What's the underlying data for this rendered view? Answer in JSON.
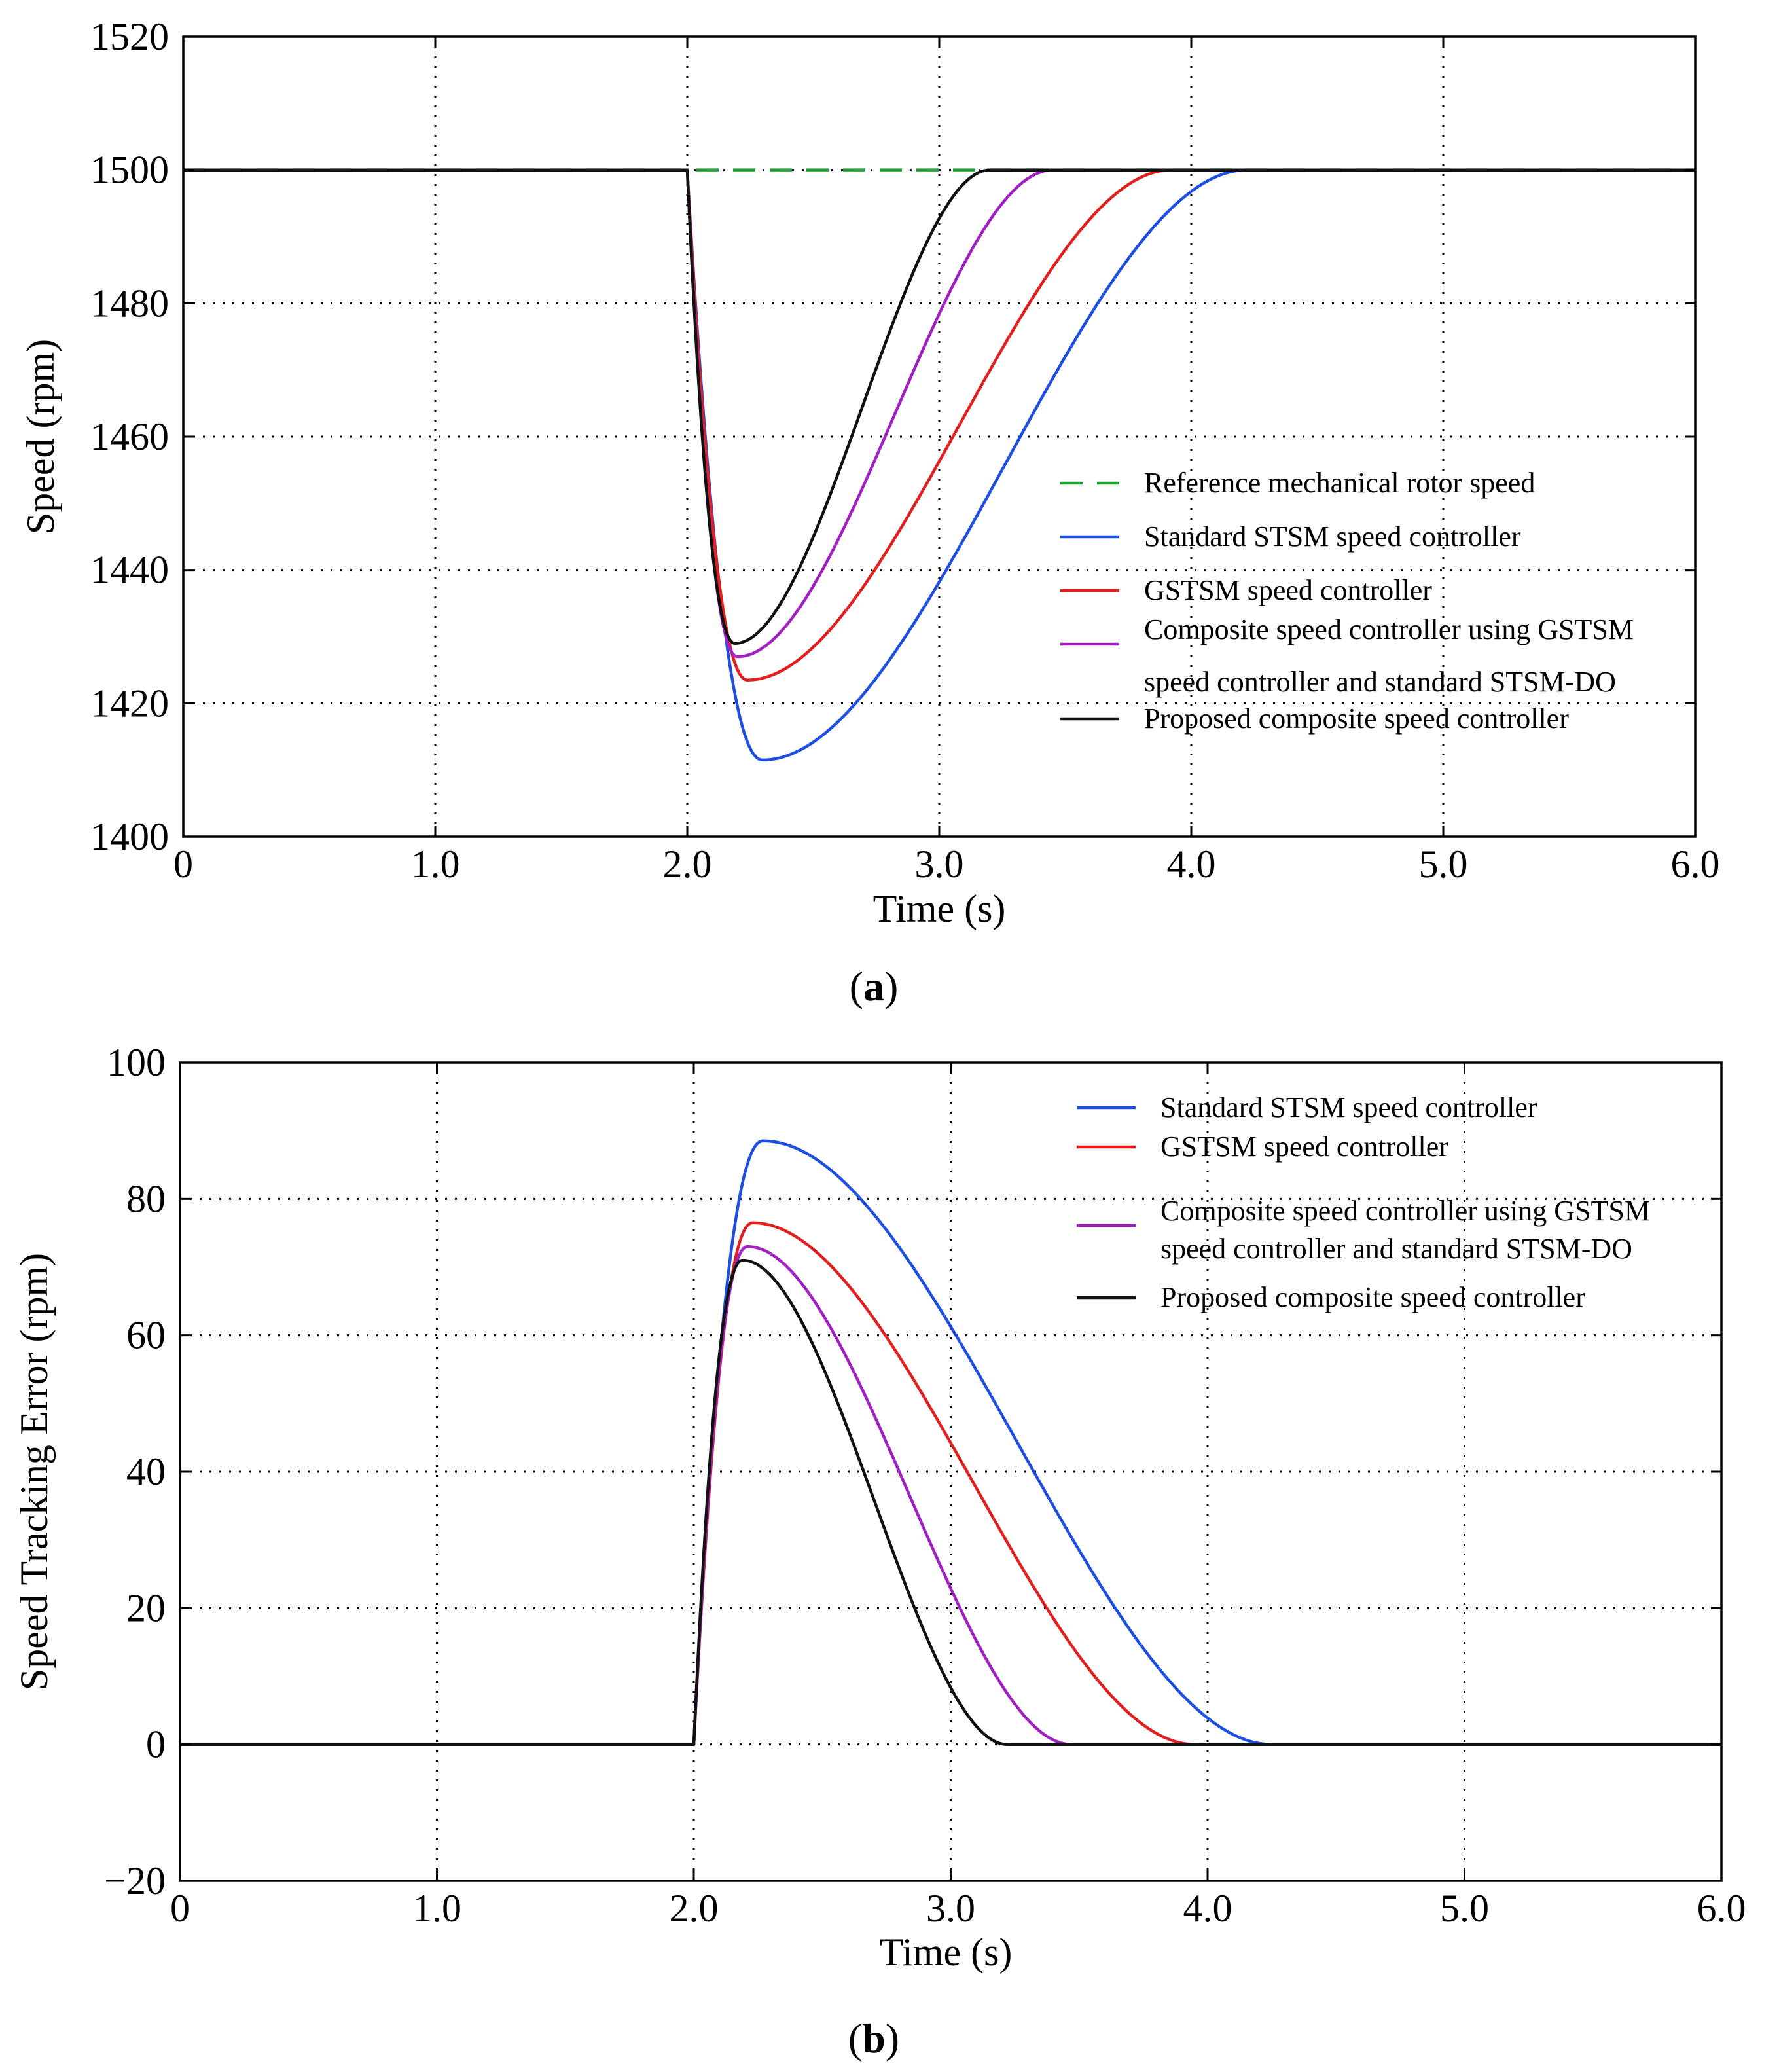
{
  "chart_data": [
    {
      "id": "a",
      "type": "line",
      "panel_label": "a",
      "title": "",
      "xlabel": "Time (s)",
      "ylabel": "Speed (rpm)",
      "xlim": [
        0,
        6
      ],
      "ylim": [
        1400,
        1520
      ],
      "xticks": [
        0,
        1,
        2,
        3,
        4,
        5,
        6
      ],
      "xtick_labels": [
        "0",
        "1.0",
        "2.0",
        "3.0",
        "4.0",
        "5.0",
        "6.0"
      ],
      "yticks": [
        1400,
        1420,
        1440,
        1460,
        1480,
        1500,
        1520
      ],
      "ytick_labels": [
        "1400",
        "1420",
        "1440",
        "1460",
        "1480",
        "1500",
        "1520"
      ],
      "grid": true,
      "legend_position": "center-right",
      "series": [
        {
          "name": "Reference mechanical rotor speed",
          "color": "#1fa032",
          "dash": true,
          "x": [
            0,
            6
          ],
          "y": [
            1500,
            1500
          ]
        },
        {
          "name": "Standard STSM speed controller",
          "color": "#1f4fe0",
          "dash": false,
          "x": [
            0,
            2.0,
            2.3,
            4.22,
            6.0
          ],
          "y": [
            1500,
            1500,
            1411.5,
            1500,
            1500
          ]
        },
        {
          "name": "GSTSM speed controller",
          "color": "#e01f1f",
          "dash": false,
          "x": [
            0,
            2.0,
            2.24,
            3.92,
            6.0
          ],
          "y": [
            1500,
            1500,
            1423.5,
            1500,
            1500
          ]
        },
        {
          "name": "Composite speed controller using GSTSM speed controller and standard STSM-DO",
          "color": "#a020c0",
          "dash": false,
          "x": [
            0,
            2.0,
            2.2,
            3.45,
            6.0
          ],
          "y": [
            1500,
            1500,
            1427,
            1500,
            1500
          ]
        },
        {
          "name": "Proposed composite speed controller",
          "color": "#111111",
          "dash": false,
          "x": [
            0,
            2.0,
            2.19,
            3.2,
            6.0
          ],
          "y": [
            1500,
            1500,
            1429,
            1500,
            1500
          ]
        }
      ]
    },
    {
      "id": "b",
      "type": "line",
      "panel_label": "b",
      "title": "",
      "xlabel": "Time (s)",
      "ylabel": "Speed Tracking Error (rpm)",
      "xlim": [
        0,
        6
      ],
      "ylim": [
        -20,
        100
      ],
      "xticks": [
        0,
        1,
        2,
        3,
        4,
        5,
        6
      ],
      "xtick_labels": [
        "0",
        "1.0",
        "2.0",
        "3.0",
        "4.0",
        "5.0",
        "6.0"
      ],
      "yticks": [
        -20,
        0,
        20,
        40,
        60,
        80,
        100
      ],
      "ytick_labels": [
        "−20",
        "0",
        "20",
        "40",
        "60",
        "80",
        "100"
      ],
      "grid": true,
      "legend_position": "top-right",
      "series": [
        {
          "name": "Standard STSM speed controller",
          "color": "#1f4fe0",
          "dash": false,
          "x": [
            0,
            2.0,
            2.27,
            4.25,
            6.0
          ],
          "y": [
            0,
            0,
            88.5,
            0,
            0
          ]
        },
        {
          "name": "GSTSM speed controller",
          "color": "#e01f1f",
          "dash": false,
          "x": [
            0,
            2.0,
            2.23,
            3.95,
            6.0
          ],
          "y": [
            0,
            0,
            76.5,
            0,
            0
          ]
        },
        {
          "name": "Composite speed controller using GSTSM speed controller and standard STSM-DO",
          "color": "#a020c0",
          "dash": false,
          "x": [
            0,
            2.0,
            2.21,
            3.47,
            6.0
          ],
          "y": [
            0,
            0,
            73,
            0,
            0
          ]
        },
        {
          "name": "Proposed composite speed controller",
          "color": "#111111",
          "dash": false,
          "x": [
            0,
            2.0,
            2.19,
            3.22,
            6.0
          ],
          "y": [
            0,
            0,
            71,
            0,
            0
          ]
        }
      ]
    }
  ],
  "legend_a": [
    {
      "label": "Reference mechanical rotor speed",
      "color": "#1fa032"
    },
    {
      "label": "Standard STSM speed controller",
      "color": "#1f4fe0"
    },
    {
      "label": "GSTSM speed controller",
      "color": "#e01f1f"
    },
    {
      "label": "Composite speed controller using GSTSM",
      "label2": "speed controller and standard STSM-DO",
      "color": "#a020c0"
    },
    {
      "label": "Proposed composite speed controller",
      "color": "#111111"
    }
  ],
  "legend_b": [
    {
      "label": "Standard STSM speed controller",
      "color": "#1f4fe0"
    },
    {
      "label": "GSTSM speed controller",
      "color": "#e01f1f"
    },
    {
      "label": "Composite speed controller using GSTSM",
      "label2": "speed controller and standard STSM-DO",
      "color": "#a020c0"
    },
    {
      "label": "Proposed composite speed controller",
      "color": "#111111"
    }
  ]
}
